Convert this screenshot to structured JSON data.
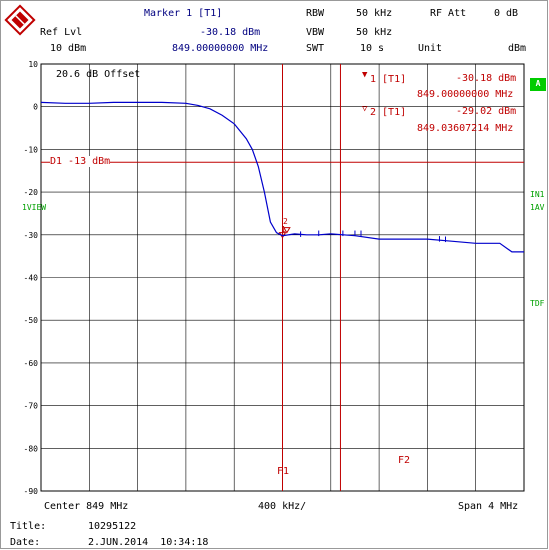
{
  "header": {
    "marker_title": "Marker 1 [T1]",
    "ref_lvl_label": "Ref Lvl",
    "ref_lvl_value": "10 dBm",
    "marker_level": "-30.18 dBm",
    "marker_freq": "849.00000000 MHz",
    "rbw_label": "RBW",
    "rbw_value": "50 kHz",
    "vbw_label": "VBW",
    "vbw_value": "50 kHz",
    "swt_label": "SWT",
    "swt_value": "10 s",
    "rfatt_label": "RF Att",
    "rfatt_value": "0 dB",
    "unit_label": "Unit",
    "unit_value": "dBm"
  },
  "plot": {
    "offset_text": "20.6 dB Offset",
    "marker1_tag": "1 [T1]",
    "marker1_level": "-30.18 dBm",
    "marker1_freq": "849.00000000 MHz",
    "marker2_tag": "2 [T1]",
    "marker2_level": "-29.02 dBm",
    "marker2_freq": "849.03607214 MHz",
    "d1_label": "D1 -13 dBm",
    "side_a": "A",
    "side_in1": "IN1",
    "side_1av": "1AV",
    "side_1view": "1VIEW",
    "side_tdf": "TDF",
    "y_ticks": [
      "10",
      "0",
      "-10",
      "-20",
      "-30",
      "-40",
      "-50",
      "-60",
      "-70",
      "-80",
      "-90"
    ],
    "f1_label": "F1",
    "f2_label": "F2",
    "mk2_label": "2",
    "mk1_label": "1"
  },
  "footer": {
    "center": "Center 849 MHz",
    "span_div": "400 kHz/",
    "span": "Span 4 MHz",
    "title_label": "Title:",
    "title_value": "10295122",
    "date_label": "Date:",
    "date_value": "2.JUN.2014  10:34:18"
  },
  "colors": {
    "trace": "#0000cc",
    "markers": "#c00000",
    "grid": "#000000",
    "badge": "#00cc00"
  },
  "chart_data": {
    "type": "line",
    "xlabel": "",
    "ylabel": "",
    "x_center_mhz": 849,
    "x_span_mhz": 4,
    "x_div_khz": 400,
    "ylim": [
      -90,
      10
    ],
    "grid": true,
    "reference_line": {
      "label": "D1 -13 dBm",
      "value": -13
    },
    "series": [
      {
        "x": [
          847.0,
          847.2,
          847.4,
          847.6,
          847.8,
          848.0,
          848.2,
          848.3,
          848.4,
          848.5,
          848.6,
          848.7,
          848.75,
          848.8,
          848.85,
          848.9,
          848.95,
          849.0,
          849.1,
          849.2,
          849.3,
          849.4,
          849.6,
          849.8,
          850.0,
          850.2,
          850.4,
          850.6,
          850.8,
          850.9,
          851.0
        ],
        "y": [
          1.0,
          0.8,
          0.8,
          1.0,
          1.0,
          1.0,
          0.8,
          0.3,
          -0.5,
          -2.0,
          -4.0,
          -7.5,
          -10.0,
          -14.0,
          -20.0,
          -27.0,
          -29.5,
          -30.2,
          -29.8,
          -30.0,
          -30.0,
          -29.8,
          -30.2,
          -31.0,
          -31.0,
          -31.0,
          -31.5,
          -32.0,
          -32.0,
          -34.0,
          -34.0
        ]
      }
    ],
    "markers": [
      {
        "name": "1",
        "x": 849.0,
        "y": -30.18
      },
      {
        "name": "2",
        "x": 849.03607214,
        "y": -29.02
      }
    ]
  }
}
